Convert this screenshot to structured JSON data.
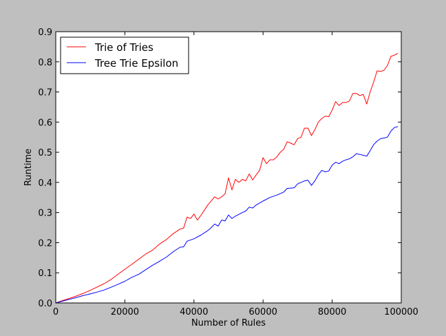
{
  "chart_data": {
    "type": "line",
    "xlabel": "Number of Rules",
    "ylabel": "Runtime",
    "xlim": [
      0,
      100000
    ],
    "ylim": [
      0.0,
      0.9
    ],
    "xticks": [
      0,
      20000,
      40000,
      60000,
      80000,
      100000
    ],
    "xtick_labels": [
      "0",
      "20000",
      "40000",
      "60000",
      "80000",
      "100000"
    ],
    "yticks": [
      0.0,
      0.1,
      0.2,
      0.3,
      0.4,
      0.5,
      0.6,
      0.7,
      0.8,
      0.9
    ],
    "ytick_labels": [
      "0.0",
      "0.1",
      "0.2",
      "0.3",
      "0.4",
      "0.5",
      "0.6",
      "0.7",
      "0.8",
      "0.9"
    ],
    "grid": false,
    "legend_position": "top-left",
    "series": [
      {
        "name": "Trie of Tries",
        "color": "#ff0000",
        "points": [
          [
            0,
            0.0
          ],
          [
            2000,
            0.008
          ],
          [
            4000,
            0.015
          ],
          [
            6000,
            0.023
          ],
          [
            8000,
            0.032
          ],
          [
            10000,
            0.042
          ],
          [
            12000,
            0.053
          ],
          [
            14000,
            0.064
          ],
          [
            16000,
            0.078
          ],
          [
            18000,
            0.095
          ],
          [
            20000,
            0.112
          ],
          [
            22000,
            0.128
          ],
          [
            24000,
            0.145
          ],
          [
            26000,
            0.162
          ],
          [
            28000,
            0.175
          ],
          [
            30000,
            0.195
          ],
          [
            32000,
            0.21
          ],
          [
            34000,
            0.23
          ],
          [
            36000,
            0.245
          ],
          [
            37000,
            0.248
          ],
          [
            38000,
            0.285
          ],
          [
            39000,
            0.28
          ],
          [
            40000,
            0.295
          ],
          [
            41000,
            0.275
          ],
          [
            42000,
            0.29
          ],
          [
            44000,
            0.325
          ],
          [
            46000,
            0.352
          ],
          [
            47000,
            0.345
          ],
          [
            48000,
            0.352
          ],
          [
            49000,
            0.362
          ],
          [
            50000,
            0.415
          ],
          [
            51000,
            0.375
          ],
          [
            52000,
            0.41
          ],
          [
            53000,
            0.4
          ],
          [
            54000,
            0.41
          ],
          [
            55000,
            0.405
          ],
          [
            56000,
            0.428
          ],
          [
            57000,
            0.408
          ],
          [
            58000,
            0.425
          ],
          [
            59000,
            0.44
          ],
          [
            60000,
            0.482
          ],
          [
            61000,
            0.462
          ],
          [
            62000,
            0.475
          ],
          [
            63000,
            0.475
          ],
          [
            64000,
            0.485
          ],
          [
            65000,
            0.5
          ],
          [
            66000,
            0.51
          ],
          [
            67000,
            0.535
          ],
          [
            68000,
            0.53
          ],
          [
            69000,
            0.525
          ],
          [
            70000,
            0.545
          ],
          [
            71000,
            0.55
          ],
          [
            72000,
            0.58
          ],
          [
            73000,
            0.58
          ],
          [
            74000,
            0.555
          ],
          [
            75000,
            0.575
          ],
          [
            76000,
            0.6
          ],
          [
            77000,
            0.612
          ],
          [
            78000,
            0.62
          ],
          [
            79000,
            0.618
          ],
          [
            80000,
            0.64
          ],
          [
            81000,
            0.668
          ],
          [
            82000,
            0.655
          ],
          [
            83000,
            0.665
          ],
          [
            84000,
            0.665
          ],
          [
            85000,
            0.67
          ],
          [
            86000,
            0.695
          ],
          [
            87000,
            0.695
          ],
          [
            88000,
            0.688
          ],
          [
            89000,
            0.692
          ],
          [
            90000,
            0.66
          ],
          [
            91000,
            0.7
          ],
          [
            92000,
            0.732
          ],
          [
            93000,
            0.77
          ],
          [
            94000,
            0.768
          ],
          [
            95000,
            0.772
          ],
          [
            96000,
            0.788
          ],
          [
            97000,
            0.818
          ],
          [
            98000,
            0.822
          ],
          [
            99000,
            0.828
          ]
        ]
      },
      {
        "name": "Tree Trie Epsilon",
        "color": "#0000ff",
        "points": [
          [
            0,
            0.0
          ],
          [
            2000,
            0.006
          ],
          [
            4000,
            0.012
          ],
          [
            6000,
            0.018
          ],
          [
            8000,
            0.025
          ],
          [
            10000,
            0.03
          ],
          [
            12000,
            0.036
          ],
          [
            14000,
            0.043
          ],
          [
            16000,
            0.052
          ],
          [
            18000,
            0.062
          ],
          [
            20000,
            0.072
          ],
          [
            22000,
            0.085
          ],
          [
            24000,
            0.095
          ],
          [
            26000,
            0.11
          ],
          [
            28000,
            0.125
          ],
          [
            30000,
            0.138
          ],
          [
            32000,
            0.152
          ],
          [
            34000,
            0.17
          ],
          [
            36000,
            0.185
          ],
          [
            37000,
            0.186
          ],
          [
            38000,
            0.205
          ],
          [
            40000,
            0.213
          ],
          [
            42000,
            0.225
          ],
          [
            44000,
            0.24
          ],
          [
            45000,
            0.25
          ],
          [
            46000,
            0.262
          ],
          [
            47000,
            0.255
          ],
          [
            48000,
            0.275
          ],
          [
            49000,
            0.272
          ],
          [
            50000,
            0.292
          ],
          [
            51000,
            0.28
          ],
          [
            52000,
            0.288
          ],
          [
            54000,
            0.3
          ],
          [
            55000,
            0.305
          ],
          [
            56000,
            0.318
          ],
          [
            57000,
            0.315
          ],
          [
            58000,
            0.325
          ],
          [
            60000,
            0.338
          ],
          [
            62000,
            0.35
          ],
          [
            64000,
            0.358
          ],
          [
            66000,
            0.368
          ],
          [
            67000,
            0.38
          ],
          [
            69000,
            0.382
          ],
          [
            70000,
            0.395
          ],
          [
            71000,
            0.4
          ],
          [
            72000,
            0.405
          ],
          [
            73000,
            0.407
          ],
          [
            74000,
            0.39
          ],
          [
            75000,
            0.405
          ],
          [
            76000,
            0.425
          ],
          [
            77000,
            0.44
          ],
          [
            78000,
            0.435
          ],
          [
            79000,
            0.438
          ],
          [
            80000,
            0.457
          ],
          [
            81000,
            0.467
          ],
          [
            82000,
            0.462
          ],
          [
            83000,
            0.47
          ],
          [
            84000,
            0.475
          ],
          [
            85000,
            0.478
          ],
          [
            86000,
            0.485
          ],
          [
            87000,
            0.495
          ],
          [
            88000,
            0.493
          ],
          [
            89000,
            0.49
          ],
          [
            90000,
            0.487
          ],
          [
            91000,
            0.505
          ],
          [
            92000,
            0.525
          ],
          [
            93000,
            0.537
          ],
          [
            94000,
            0.545
          ],
          [
            95000,
            0.547
          ],
          [
            96000,
            0.55
          ],
          [
            97000,
            0.57
          ],
          [
            98000,
            0.582
          ],
          [
            99000,
            0.585
          ]
        ]
      }
    ]
  }
}
